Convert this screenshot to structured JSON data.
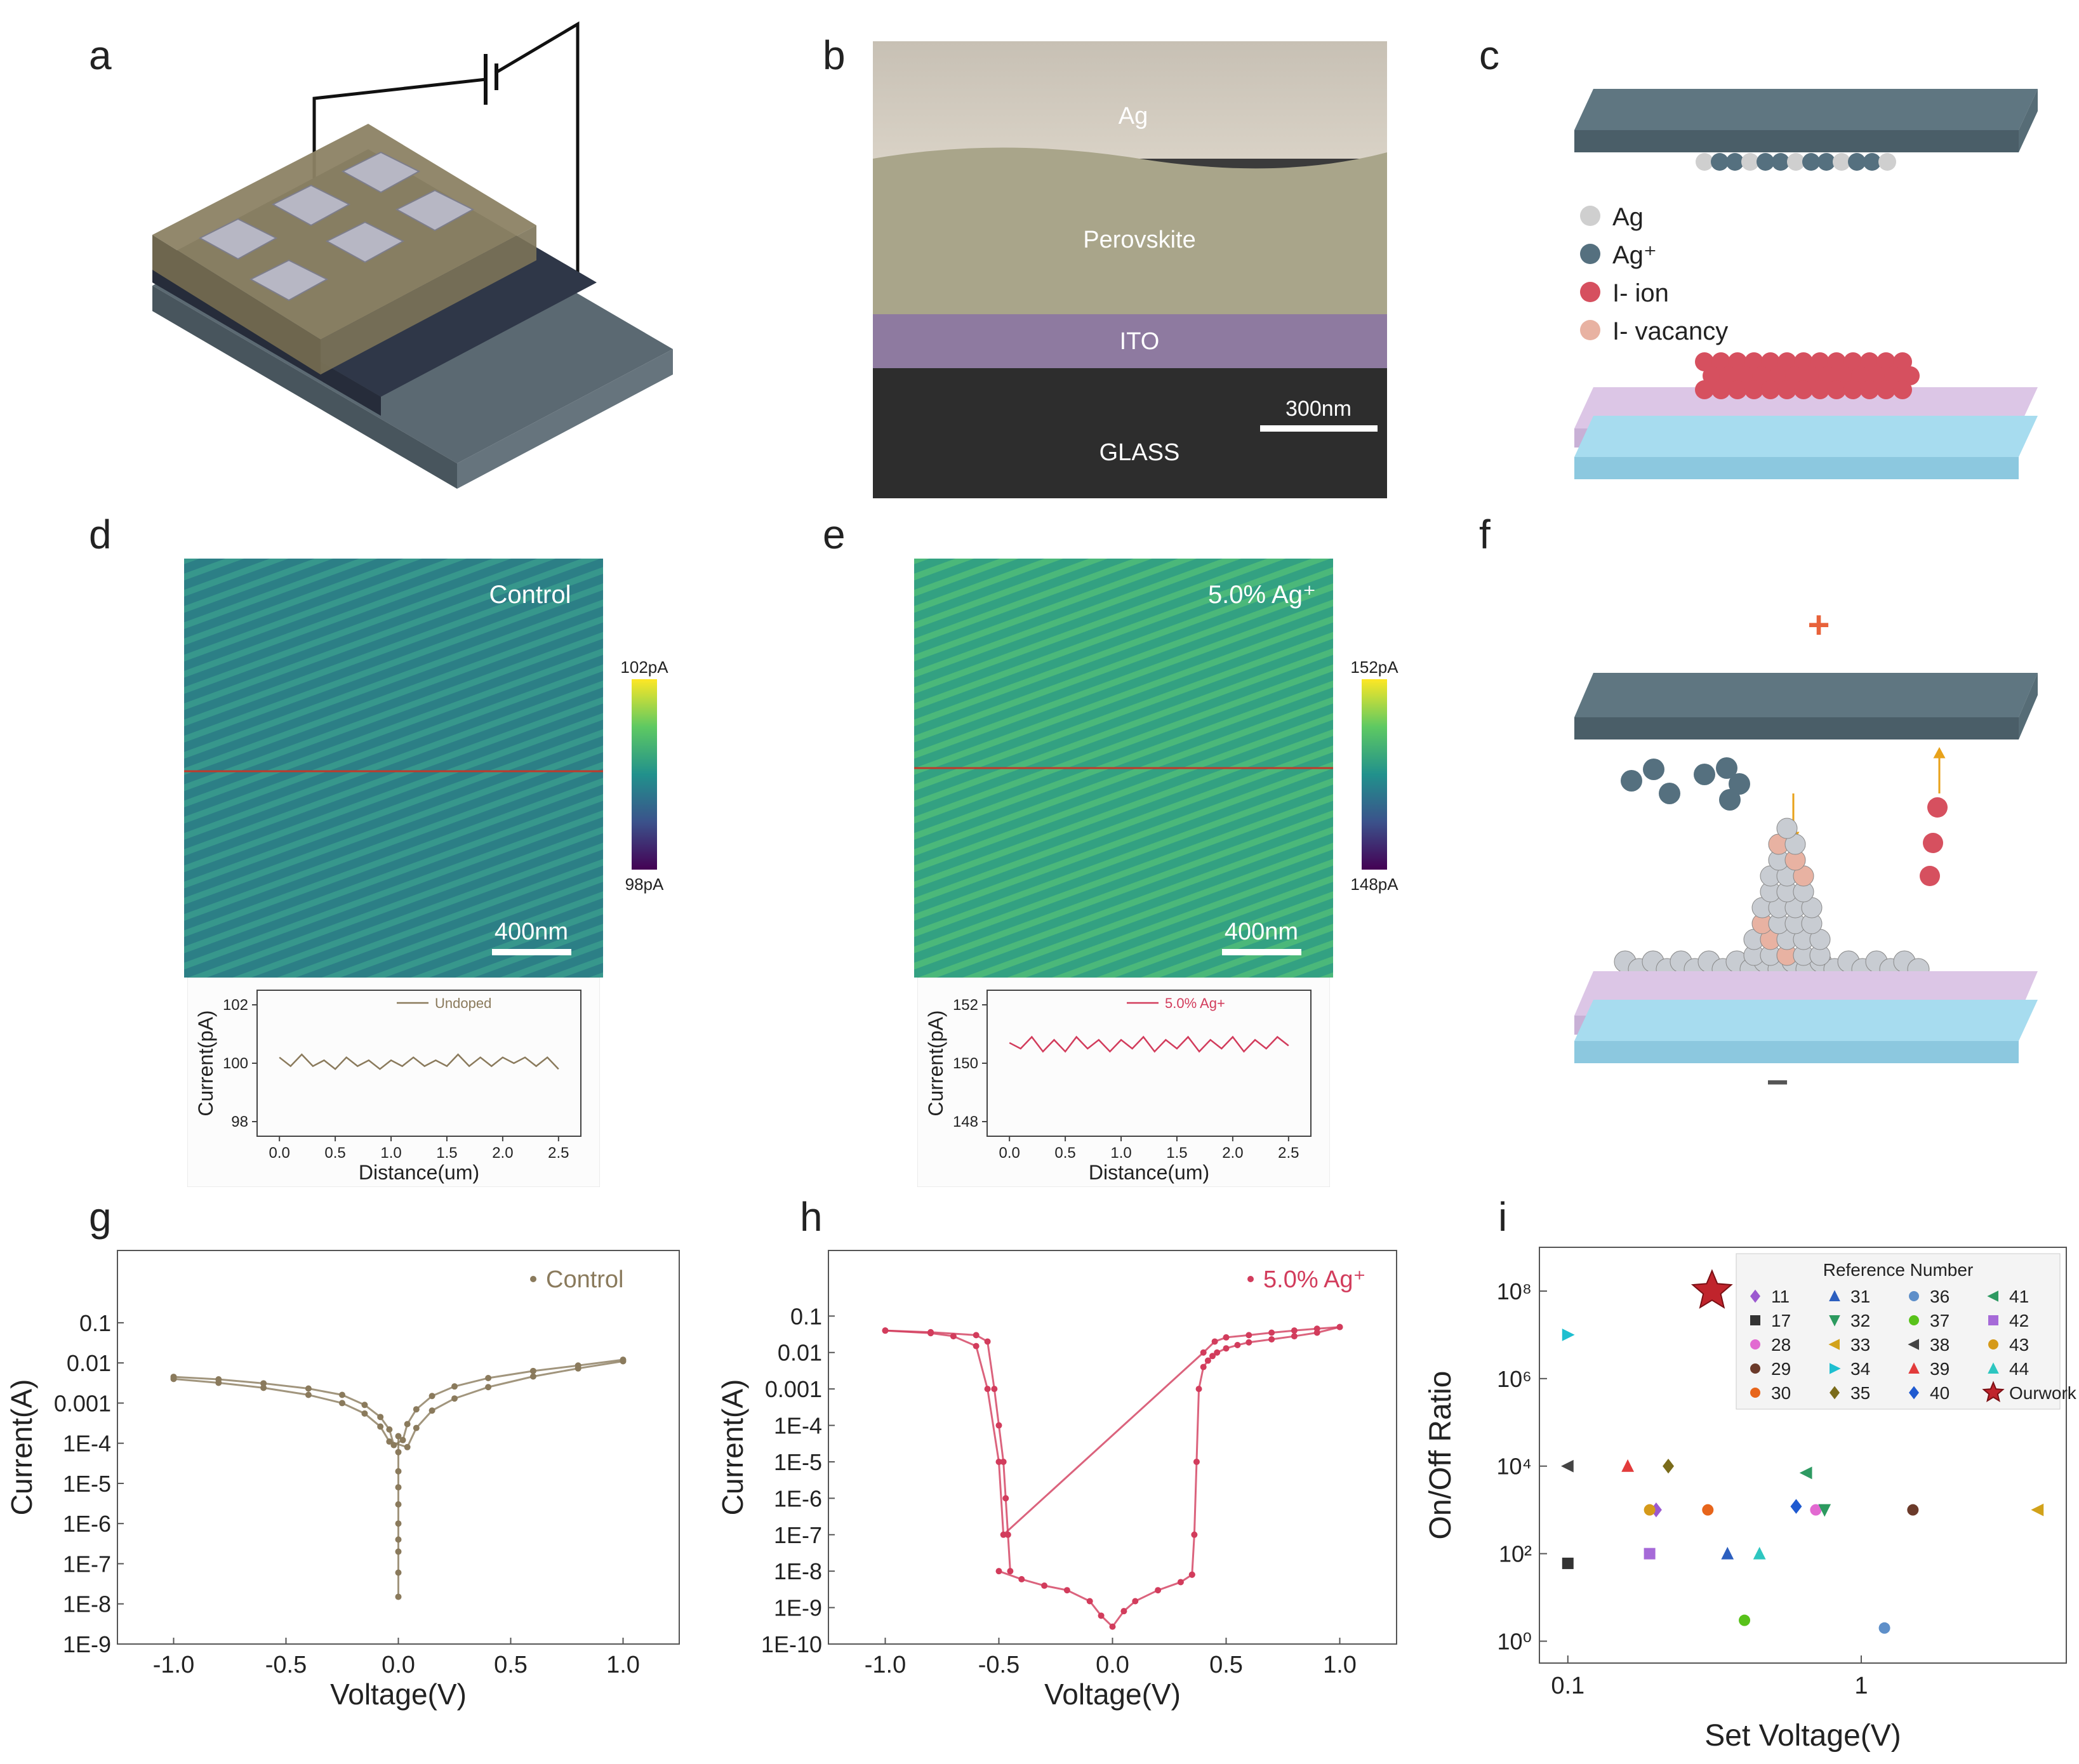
{
  "panels": {
    "a": {
      "letter": "a"
    },
    "b": {
      "letter": "b",
      "layers": [
        "Ag",
        "Perovskite",
        "ITO",
        "GLASS"
      ],
      "scale": "300nm"
    },
    "c": {
      "letter": "c",
      "legend": [
        "Ag",
        "Ag⁺",
        "I- ion",
        "I- vacancy"
      ]
    },
    "d": {
      "letter": "d",
      "label": "Control",
      "cbar_max": "102pA",
      "cbar_min": "98pA",
      "scale": "400nm"
    },
    "e": {
      "letter": "e",
      "label": "5.0% Ag⁺",
      "cbar_max": "152pA",
      "cbar_min": "148pA",
      "scale": "400nm"
    },
    "f": {
      "letter": "f",
      "plus": "+",
      "minus": "−"
    },
    "g": {
      "letter": "g"
    },
    "h": {
      "letter": "h"
    },
    "i": {
      "letter": "i"
    }
  },
  "colors": {
    "control": "#8a7a5c",
    "ag_doped": "#d23c5c",
    "electrode": "#5f7681",
    "perovskite": "#9c9470",
    "ito": "#dcc6e6",
    "glass": "#a7dcef"
  },
  "chart_data": [
    {
      "id": "d_profile",
      "type": "line",
      "legend": "Undoped",
      "xlabel": "Distance(um)",
      "ylabel": "Current(pA)",
      "xlim": [
        -0.2,
        2.7
      ],
      "ylim": [
        97.5,
        102.5
      ],
      "xticks": [
        "0.0",
        "0.5",
        "1.0",
        "1.5",
        "2.0",
        "2.5"
      ],
      "yticks": [
        "98",
        "100",
        "102"
      ],
      "x": [
        0.0,
        0.1,
        0.2,
        0.3,
        0.4,
        0.5,
        0.6,
        0.7,
        0.8,
        0.9,
        1.0,
        1.1,
        1.2,
        1.3,
        1.4,
        1.5,
        1.6,
        1.7,
        1.8,
        1.9,
        2.0,
        2.1,
        2.2,
        2.3,
        2.4,
        2.5
      ],
      "y": [
        100.2,
        99.9,
        100.3,
        99.9,
        100.1,
        99.8,
        100.2,
        99.9,
        100.1,
        99.8,
        100.1,
        99.9,
        100.2,
        99.9,
        100.1,
        99.9,
        100.3,
        99.9,
        100.2,
        99.9,
        100.2,
        100.0,
        100.2,
        99.9,
        100.2,
        99.8
      ]
    },
    {
      "id": "e_profile",
      "type": "line",
      "legend": "5.0% Ag+",
      "xlabel": "Distance(um)",
      "ylabel": "Current(pA)",
      "xlim": [
        -0.2,
        2.7
      ],
      "ylim": [
        147.5,
        152.5
      ],
      "xticks": [
        "0.0",
        "0.5",
        "1.0",
        "1.5",
        "2.0",
        "2.5"
      ],
      "yticks": [
        "148",
        "150",
        "152"
      ],
      "x": [
        0.0,
        0.1,
        0.2,
        0.3,
        0.4,
        0.5,
        0.6,
        0.7,
        0.8,
        0.9,
        1.0,
        1.1,
        1.2,
        1.3,
        1.4,
        1.5,
        1.6,
        1.7,
        1.8,
        1.9,
        2.0,
        2.1,
        2.2,
        2.3,
        2.4,
        2.5
      ],
      "y": [
        150.7,
        150.5,
        150.9,
        150.4,
        150.8,
        150.4,
        150.9,
        150.5,
        150.8,
        150.4,
        150.8,
        150.5,
        150.9,
        150.4,
        150.8,
        150.5,
        150.9,
        150.4,
        150.8,
        150.5,
        150.9,
        150.4,
        150.8,
        150.5,
        150.9,
        150.6
      ]
    },
    {
      "id": "g_iv",
      "type": "scatter",
      "legend": "Control",
      "xlabel": "Voltage(V)",
      "ylabel": "Current(A)",
      "xlim": [
        -1.25,
        1.25
      ],
      "ylim_exp": [
        -9,
        0.8
      ],
      "xticks": [
        "-1.0",
        "-0.5",
        "0.0",
        "0.5",
        "1.0"
      ],
      "yticks": [
        "0.1",
        "0.01",
        "0.001",
        "1E-4",
        "1E-5",
        "1E-6",
        "1E-7",
        "1E-8",
        "1E-9"
      ],
      "series": [
        {
          "name": "branch_upper",
          "v": [
            -1.0,
            -0.8,
            -0.6,
            -0.4,
            -0.25,
            -0.15,
            -0.08,
            -0.04,
            -0.02,
            0.02,
            0.04,
            0.08,
            0.15,
            0.25,
            0.4,
            0.6,
            0.8,
            1.0
          ],
          "i": [
            0.0045,
            0.0039,
            0.0031,
            0.0023,
            0.0016,
            0.0009,
            0.00045,
            0.00022,
            9e-05,
            0.00012,
            0.0003,
            0.0007,
            0.0015,
            0.0026,
            0.0042,
            0.0063,
            0.0086,
            0.012
          ]
        },
        {
          "name": "branch_lower",
          "v": [
            -1.0,
            -0.8,
            -0.6,
            -0.4,
            -0.25,
            -0.15,
            -0.08,
            -0.04,
            0.04,
            0.08,
            0.15,
            0.25,
            0.4,
            0.6,
            0.8,
            1.0
          ],
          "i": [
            0.004,
            0.0032,
            0.0024,
            0.0016,
            0.001,
            0.00055,
            0.00026,
            0.00011,
            8e-05,
            0.00024,
            0.00065,
            0.0013,
            0.0025,
            0.0046,
            0.0073,
            0.011
          ]
        },
        {
          "name": "zero_crossing",
          "v": [
            0,
            0,
            0,
            0,
            0,
            0,
            0,
            0,
            0,
            0
          ],
          "i": [
            1.5e-08,
            6e-08,
            2e-07,
            4e-07,
            1e-06,
            3e-06,
            8e-06,
            2e-05,
            6e-05,
            0.00015
          ]
        }
      ]
    },
    {
      "id": "h_iv",
      "type": "scatter",
      "legend": "5.0% Ag⁺",
      "xlabel": "Voltage(V)",
      "ylabel": "Current(A)",
      "xlim": [
        -1.25,
        1.25
      ],
      "ylim_exp": [
        -10,
        0.8
      ],
      "xticks": [
        "-1.0",
        "-0.5",
        "0.0",
        "0.5",
        "1.0"
      ],
      "yticks": [
        "0.1",
        "0.01",
        "0.001",
        "1E-4",
        "1E-5",
        "1E-6",
        "1E-7",
        "1E-8",
        "1E-9",
        "1E-10"
      ],
      "series": [
        {
          "name": "on_state",
          "v": [
            -1.0,
            -0.8,
            -0.7,
            -0.6,
            -0.55,
            -0.5,
            -0.48,
            0.4,
            0.45,
            0.5,
            0.6,
            0.7,
            0.8,
            0.9,
            1.0
          ],
          "i": [
            0.04,
            0.034,
            0.028,
            0.015,
            0.001,
            1e-05,
            1e-07,
            0.01,
            0.02,
            0.026,
            0.03,
            0.035,
            0.04,
            0.045,
            0.05
          ]
        },
        {
          "name": "off_state",
          "v": [
            -0.5,
            -0.4,
            -0.3,
            -0.2,
            -0.1,
            -0.05,
            0,
            0.05,
            0.1,
            0.2,
            0.3,
            0.35
          ],
          "i": [
            1e-08,
            6e-09,
            4e-09,
            3e-09,
            1.5e-09,
            6e-10,
            3e-10,
            8e-10,
            1.5e-09,
            3e-09,
            5e-09,
            8e-09
          ]
        },
        {
          "name": "set_branch",
          "v": [
            0.35,
            0.36,
            0.37,
            0.38,
            0.4,
            0.42,
            0.44,
            0.46,
            0.5,
            0.55,
            0.6,
            0.7,
            0.8,
            0.9,
            1.0
          ],
          "i": [
            8e-09,
            1e-07,
            1e-05,
            0.001,
            0.004,
            0.006,
            0.008,
            0.01,
            0.013,
            0.016,
            0.019,
            0.023,
            0.028,
            0.035,
            0.05
          ]
        },
        {
          "name": "reset_branch",
          "v": [
            -0.45,
            -0.46,
            -0.47,
            -0.48,
            -0.5,
            -0.52,
            -0.55,
            -0.6,
            -0.8,
            -1.0
          ],
          "i": [
            1e-08,
            1e-07,
            1e-06,
            1e-05,
            0.0001,
            0.001,
            0.02,
            0.03,
            0.036,
            0.04
          ]
        }
      ]
    },
    {
      "id": "i_bench",
      "type": "scatter",
      "xlabel": "Set Voltage(V)",
      "ylabel": "On/Off Ratio",
      "legend_title": "Reference Number",
      "xscale": "log",
      "xlim": [
        0.08,
        5
      ],
      "ylim_exp": [
        -0.5,
        9
      ],
      "xticks": [
        "0.1",
        "1"
      ],
      "yticks": [
        "10⁰",
        "10²",
        "10⁴",
        "10⁶",
        "10⁸"
      ],
      "points": [
        {
          "ref": "11",
          "x": 0.2,
          "y": 1000.0,
          "color": "#9b59d0",
          "marker": "diamond"
        },
        {
          "ref": "17",
          "x": 0.1,
          "y": 60,
          "color": "#333333",
          "marker": "square"
        },
        {
          "ref": "28",
          "x": 0.7,
          "y": 1000.0,
          "color": "#e26ad1",
          "marker": "circle"
        },
        {
          "ref": "29",
          "x": 1.5,
          "y": 1000.0,
          "color": "#6b3a2a",
          "marker": "circle"
        },
        {
          "ref": "30",
          "x": 0.3,
          "y": 1000.0,
          "color": "#e7651b",
          "marker": "circle"
        },
        {
          "ref": "31",
          "x": 0.35,
          "y": 100,
          "color": "#2c5fbf",
          "marker": "triangle-up"
        },
        {
          "ref": "32",
          "x": 0.75,
          "y": 1000.0,
          "color": "#2c9a5f",
          "marker": "triangle-down"
        },
        {
          "ref": "33",
          "x": 4.0,
          "y": 1000.0,
          "color": "#d2a21a",
          "marker": "triangle-left"
        },
        {
          "ref": "34",
          "x": 0.1,
          "y": 10000000.0,
          "color": "#1ebfd0",
          "marker": "triangle-right"
        },
        {
          "ref": "35",
          "x": 0.22,
          "y": 10000.0,
          "color": "#7a6b1a",
          "marker": "diamond"
        },
        {
          "ref": "36",
          "x": 1.2,
          "y": 2,
          "color": "#5e8fc9",
          "marker": "circle"
        },
        {
          "ref": "37",
          "x": 0.4,
          "y": 3,
          "color": "#58c21a",
          "marker": "circle"
        },
        {
          "ref": "38",
          "x": 0.1,
          "y": 10000.0,
          "color": "#444444",
          "marker": "triangle-left"
        },
        {
          "ref": "39",
          "x": 0.16,
          "y": 10000.0,
          "color": "#e23b3b",
          "marker": "triangle-up"
        },
        {
          "ref": "40",
          "x": 0.6,
          "y": 1200.0,
          "color": "#1f5ad0",
          "marker": "diamond"
        },
        {
          "ref": "41",
          "x": 0.65,
          "y": 7000.0,
          "color": "#2e9a62",
          "marker": "triangle-left"
        },
        {
          "ref": "42",
          "x": 0.19,
          "y": 100,
          "color": "#a66ad8",
          "marker": "square"
        },
        {
          "ref": "43",
          "x": 0.19,
          "y": 1000.0,
          "color": "#d59a1a",
          "marker": "circle"
        },
        {
          "ref": "44",
          "x": 0.45,
          "y": 100,
          "color": "#2dc6c0",
          "marker": "triangle-up"
        },
        {
          "ref": "Ourwork",
          "x": 0.31,
          "y": 100000000.0,
          "color": "#c0242c",
          "marker": "star"
        }
      ],
      "legend_items": [
        "11",
        "31",
        "36",
        "41",
        "17",
        "32",
        "37",
        "42",
        "28",
        "33",
        "38",
        "43",
        "29",
        "34",
        "39",
        "44",
        "30",
        "35",
        "40",
        "Ourwork"
      ]
    }
  ]
}
